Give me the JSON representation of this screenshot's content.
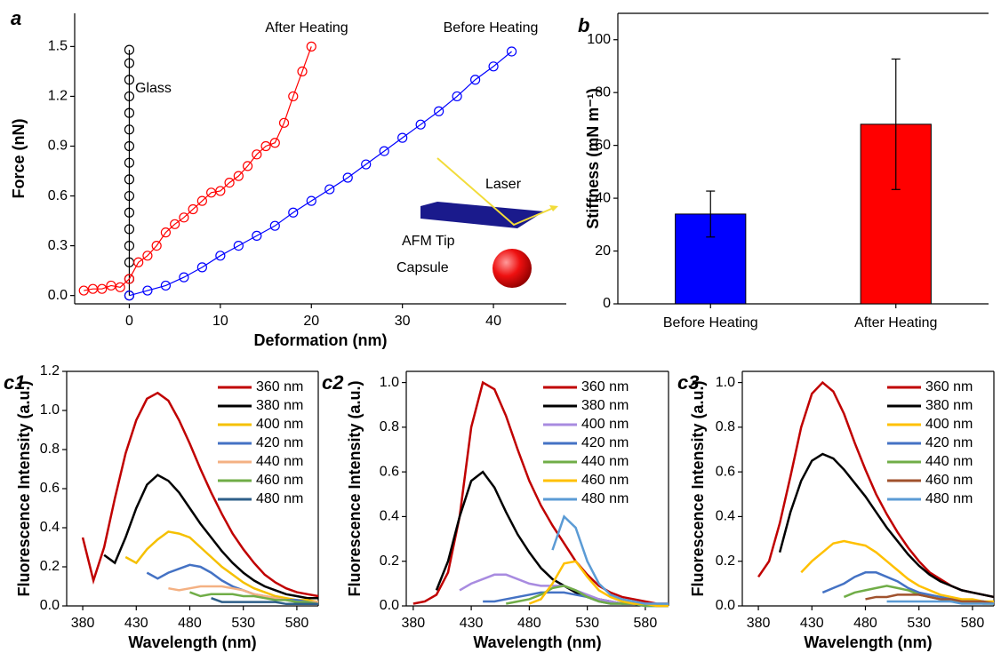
{
  "chart_data": [
    {
      "type": "line",
      "panel_label": "a",
      "marker": "circle-open",
      "xlabel": "Deformation (nm)",
      "ylabel": "Force (nN)",
      "xlim": [
        -6,
        48
      ],
      "xticks": [
        0,
        10,
        20,
        30,
        40
      ],
      "ylim": [
        -0.05,
        1.7
      ],
      "yticks": [
        {
          "value": 0,
          "label": "0.0"
        },
        0.3,
        0.6,
        0.9,
        1.2,
        1.5
      ],
      "annotations": [
        "Laser",
        "AFM Tip",
        "Capsule"
      ],
      "series": [
        {
          "name": "Glass",
          "color": "#000000",
          "x": [
            0,
            0,
            0,
            0,
            0,
            0,
            0,
            0,
            0,
            0,
            0,
            0,
            0,
            0,
            0,
            0
          ],
          "values": [
            0,
            0.1,
            0.2,
            0.3,
            0.4,
            0.5,
            0.6,
            0.7,
            0.8,
            0.9,
            1.0,
            1.1,
            1.2,
            1.3,
            1.4,
            1.48
          ]
        },
        {
          "name": "After Heating",
          "color": "#ff0000",
          "x": [
            -5,
            -4,
            -3,
            -2,
            -1,
            0,
            1,
            2,
            3,
            4,
            5,
            6,
            7,
            8,
            9,
            10,
            11,
            12,
            13,
            14,
            15,
            16,
            17,
            18,
            19,
            20
          ],
          "values": [
            0.03,
            0.04,
            0.04,
            0.06,
            0.05,
            0.1,
            0.2,
            0.24,
            0.3,
            0.38,
            0.43,
            0.47,
            0.52,
            0.57,
            0.62,
            0.63,
            0.68,
            0.72,
            0.78,
            0.85,
            0.9,
            0.92,
            1.04,
            1.2,
            1.35,
            1.5
          ]
        },
        {
          "name": "Before Heating",
          "color": "#0000ff",
          "x": [
            0,
            2,
            4,
            6,
            8,
            10,
            12,
            14,
            16,
            18,
            20,
            22,
            24,
            26,
            28,
            30,
            32,
            34,
            36,
            38,
            40,
            42
          ],
          "values": [
            0,
            0.03,
            0.06,
            0.11,
            0.17,
            0.24,
            0.3,
            0.36,
            0.42,
            0.5,
            0.57,
            0.64,
            0.71,
            0.79,
            0.87,
            0.95,
            1.03,
            1.11,
            1.2,
            1.3,
            1.38,
            1.47
          ]
        }
      ]
    },
    {
      "type": "bar",
      "panel_label": "b",
      "ylabel": "Stiffness (mN m⁻¹)",
      "categories": [
        "Before Heating",
        "After Heating"
      ],
      "values": [
        34,
        68
      ],
      "errors": [
        8.7,
        24.7
      ],
      "colors": [
        "#0000ff",
        "#ff0000"
      ],
      "ylim": [
        0,
        110
      ],
      "yticks": [
        0,
        20,
        40,
        60,
        80,
        100
      ]
    },
    {
      "type": "line",
      "panel_label": "c1",
      "xlabel": "Wavelength (nm)",
      "ylabel": "Fluorescence Intensity (a.u.)",
      "legend": "upper right",
      "xlim": [
        365,
        600
      ],
      "xticks": [
        380,
        430,
        480,
        530,
        580
      ],
      "ylim": [
        0,
        1.2
      ],
      "yticks": [
        {
          "value": 0,
          "label": "0.0"
        },
        0.2,
        0.4,
        0.6,
        0.8,
        {
          "value": 1,
          "label": "1.0"
        },
        1.2
      ],
      "x": [
        380,
        390,
        400,
        410,
        420,
        430,
        440,
        450,
        460,
        470,
        480,
        490,
        500,
        510,
        520,
        530,
        540,
        550,
        560,
        570,
        580,
        590,
        600
      ],
      "series": [
        {
          "name": "360 nm",
          "color": "#c00000",
          "values": [
            0.35,
            0.13,
            0.3,
            0.55,
            0.78,
            0.95,
            1.06,
            1.09,
            1.05,
            0.95,
            0.83,
            0.7,
            0.58,
            0.47,
            0.37,
            0.29,
            0.22,
            0.16,
            0.12,
            0.09,
            0.07,
            0.06,
            0.05
          ]
        },
        {
          "name": "380 nm",
          "color": "#000000",
          "values": [
            null,
            null,
            0.26,
            0.22,
            0.35,
            0.5,
            0.62,
            0.67,
            0.64,
            0.58,
            0.5,
            0.42,
            0.35,
            0.28,
            0.22,
            0.17,
            0.13,
            0.1,
            0.08,
            0.06,
            0.05,
            0.04,
            0.04
          ]
        },
        {
          "name": "400 nm",
          "color": "#f5c000",
          "values": [
            null,
            null,
            null,
            null,
            0.25,
            0.22,
            0.29,
            0.34,
            0.38,
            0.37,
            0.35,
            0.3,
            0.25,
            0.2,
            0.16,
            0.12,
            0.09,
            0.07,
            0.05,
            0.04,
            0.03,
            0.03,
            0.02
          ]
        },
        {
          "name": "420 nm",
          "color": "#4472c4",
          "values": [
            null,
            null,
            null,
            null,
            null,
            null,
            0.17,
            0.14,
            0.17,
            0.19,
            0.21,
            0.2,
            0.17,
            0.13,
            0.1,
            0.08,
            0.06,
            0.05,
            0.04,
            0.03,
            0.03,
            0.02,
            0.02
          ]
        },
        {
          "name": "440 nm",
          "color": "#f4b183",
          "values": [
            null,
            null,
            null,
            null,
            null,
            null,
            null,
            null,
            0.09,
            0.08,
            0.09,
            0.1,
            0.1,
            0.1,
            0.09,
            0.08,
            0.06,
            0.05,
            0.04,
            0.03,
            0.02,
            0.02,
            0.02
          ]
        },
        {
          "name": "460 nm",
          "color": "#70ad47",
          "values": [
            null,
            null,
            null,
            null,
            null,
            null,
            null,
            null,
            null,
            null,
            0.07,
            0.05,
            0.06,
            0.06,
            0.06,
            0.05,
            0.05,
            0.04,
            0.03,
            0.03,
            0.02,
            0.02,
            0.01
          ]
        },
        {
          "name": "480 nm",
          "color": "#2e5f8a",
          "values": [
            null,
            null,
            null,
            null,
            null,
            null,
            null,
            null,
            null,
            null,
            null,
            null,
            0.04,
            0.02,
            0.02,
            0.02,
            0.02,
            0.02,
            0.02,
            0.01,
            0.01,
            0.01,
            0.01
          ]
        }
      ]
    },
    {
      "type": "line",
      "panel_label": "c2",
      "xlabel": "Wavelength (nm)",
      "ylabel": "Fluorescence Intensity (a.u.)",
      "legend": "upper right",
      "xlim": [
        374,
        600
      ],
      "xticks": [
        380,
        430,
        480,
        530,
        580
      ],
      "ylim": [
        0,
        1.05
      ],
      "yticks": [
        {
          "value": 0,
          "label": "0.0"
        },
        0.2,
        0.4,
        0.6,
        0.8,
        {
          "value": 1,
          "label": "1.0"
        }
      ],
      "x": [
        380,
        390,
        400,
        410,
        420,
        430,
        440,
        450,
        460,
        470,
        480,
        490,
        500,
        510,
        520,
        530,
        540,
        550,
        560,
        570,
        580,
        590,
        600
      ],
      "series": [
        {
          "name": "360 nm",
          "color": "#c00000",
          "values": [
            0.01,
            0.02,
            0.05,
            0.15,
            0.4,
            0.8,
            1.0,
            0.97,
            0.85,
            0.7,
            0.56,
            0.45,
            0.36,
            0.28,
            0.2,
            0.14,
            0.09,
            0.06,
            0.04,
            0.03,
            0.02,
            0.01,
            0.01
          ]
        },
        {
          "name": "380 nm",
          "color": "#000000",
          "values": [
            null,
            null,
            0.07,
            0.2,
            0.4,
            0.56,
            0.6,
            0.53,
            0.42,
            0.32,
            0.24,
            0.17,
            0.12,
            0.09,
            0.06,
            0.04,
            0.03,
            0.02,
            0.01,
            0.01,
            0.01,
            0,
            0
          ]
        },
        {
          "name": "400 nm",
          "color": "#a88be0",
          "values": [
            null,
            null,
            null,
            null,
            0.07,
            0.1,
            0.12,
            0.14,
            0.14,
            0.12,
            0.1,
            0.09,
            0.09,
            0.09,
            0.07,
            0.05,
            0.03,
            0.02,
            0.01,
            0.01,
            0.01,
            0.01,
            0
          ]
        },
        {
          "name": "420 nm",
          "color": "#4472c4",
          "values": [
            null,
            null,
            null,
            null,
            null,
            null,
            0.02,
            0.02,
            0.03,
            0.04,
            0.05,
            0.06,
            0.06,
            0.06,
            0.05,
            0.04,
            0.02,
            0.01,
            0.01,
            0.01,
            0,
            0,
            0
          ]
        },
        {
          "name": "440 nm",
          "color": "#70ad47",
          "values": [
            null,
            null,
            null,
            null,
            null,
            null,
            null,
            null,
            0.01,
            0.02,
            0.03,
            0.05,
            0.08,
            0.09,
            0.07,
            0.04,
            0.02,
            0.01,
            0.01,
            0.01,
            0,
            0,
            0
          ]
        },
        {
          "name": "460 nm",
          "color": "#ffc000",
          "values": [
            null,
            null,
            null,
            null,
            null,
            null,
            null,
            null,
            null,
            null,
            0.01,
            0.03,
            0.1,
            0.19,
            0.2,
            0.13,
            0.07,
            0.04,
            0.02,
            0.01,
            0.01,
            0,
            0
          ]
        },
        {
          "name": "480 nm",
          "color": "#5b9bd5",
          "values": [
            null,
            null,
            null,
            null,
            null,
            null,
            null,
            null,
            null,
            null,
            null,
            null,
            0.25,
            0.4,
            0.35,
            0.2,
            0.1,
            0.05,
            0.03,
            0.02,
            0.01,
            0.01,
            0.01
          ]
        }
      ]
    },
    {
      "type": "line",
      "panel_label": "c3",
      "xlabel": "Wavelength (nm)",
      "ylabel": "Fluorescence Intensity (a.u.)",
      "legend": "upper right",
      "xlim": [
        365,
        600
      ],
      "xticks": [
        380,
        430,
        480,
        530,
        580
      ],
      "ylim": [
        0,
        1.05
      ],
      "yticks": [
        {
          "value": 0,
          "label": "0.0"
        },
        0.2,
        0.4,
        0.6,
        0.8,
        {
          "value": 1,
          "label": "1.0"
        }
      ],
      "x": [
        380,
        390,
        400,
        410,
        420,
        430,
        440,
        450,
        460,
        470,
        480,
        490,
        500,
        510,
        520,
        530,
        540,
        550,
        560,
        570,
        580,
        590,
        600
      ],
      "series": [
        {
          "name": "360 nm",
          "color": "#c00000",
          "values": [
            0.13,
            0.2,
            0.37,
            0.58,
            0.8,
            0.95,
            1.0,
            0.96,
            0.86,
            0.73,
            0.61,
            0.5,
            0.41,
            0.33,
            0.26,
            0.2,
            0.15,
            0.12,
            0.09,
            0.07,
            0.06,
            0.05,
            0.04
          ]
        },
        {
          "name": "380 nm",
          "color": "#000000",
          "values": [
            null,
            null,
            0.24,
            0.42,
            0.56,
            0.65,
            0.68,
            0.66,
            0.61,
            0.55,
            0.49,
            0.42,
            0.35,
            0.29,
            0.23,
            0.18,
            0.14,
            0.11,
            0.09,
            0.07,
            0.06,
            0.05,
            0.04
          ]
        },
        {
          "name": "400 nm",
          "color": "#ffc000",
          "values": [
            null,
            null,
            null,
            null,
            0.15,
            0.2,
            0.24,
            0.28,
            0.29,
            0.28,
            0.27,
            0.24,
            0.2,
            0.16,
            0.12,
            0.09,
            0.07,
            0.05,
            0.04,
            0.03,
            0.03,
            0.02,
            0.02
          ]
        },
        {
          "name": "420 nm",
          "color": "#4472c4",
          "values": [
            null,
            null,
            null,
            null,
            null,
            null,
            0.06,
            0.08,
            0.1,
            0.13,
            0.15,
            0.15,
            0.13,
            0.11,
            0.08,
            0.06,
            0.05,
            0.04,
            0.03,
            0.02,
            0.02,
            0.02,
            0.01
          ]
        },
        {
          "name": "440 nm",
          "color": "#70ad47",
          "values": [
            null,
            null,
            null,
            null,
            null,
            null,
            null,
            null,
            0.04,
            0.06,
            0.07,
            0.08,
            0.09,
            0.08,
            0.07,
            0.05,
            0.04,
            0.03,
            0.02,
            0.02,
            0.02,
            0.01,
            0.01
          ]
        },
        {
          "name": "460 nm",
          "color": "#a0522d",
          "values": [
            null,
            null,
            null,
            null,
            null,
            null,
            null,
            null,
            null,
            null,
            0.03,
            0.04,
            0.04,
            0.05,
            0.05,
            0.05,
            0.04,
            0.03,
            0.03,
            0.02,
            0.02,
            0.02,
            0.01
          ]
        },
        {
          "name": "480 nm",
          "color": "#5b9bd5",
          "values": [
            null,
            null,
            null,
            null,
            null,
            null,
            null,
            null,
            null,
            null,
            null,
            null,
            0.02,
            0.02,
            0.02,
            0.02,
            0.02,
            0.02,
            0.02,
            0.01,
            0.01,
            0.01,
            0.01
          ]
        }
      ]
    }
  ]
}
